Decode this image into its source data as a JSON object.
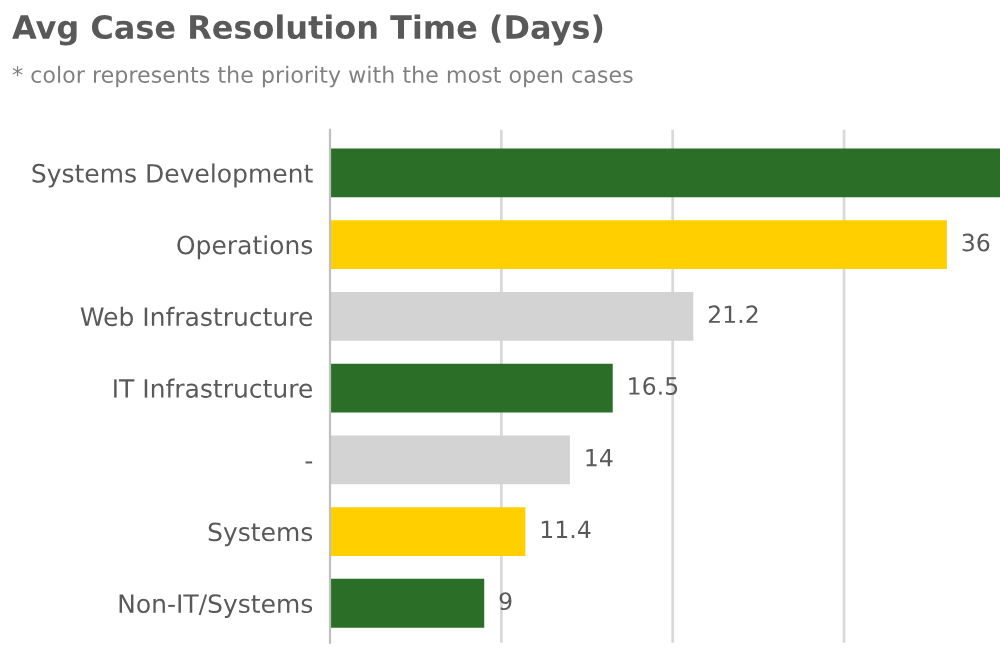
{
  "chart_data": {
    "type": "bar",
    "orientation": "horizontal",
    "title": "Avg Case Resolution Time (Days)",
    "subtitle": "* color represents the priority with the most open cases",
    "categories": [
      "Systems Development",
      "Operations",
      "Web Infrastructure",
      "IT Infrastructure",
      "-",
      "Systems",
      "Non-IT/Systems"
    ],
    "values": [
      39.1,
      36,
      21.2,
      16.5,
      14,
      11.4,
      9
    ],
    "value_labels": [
      null,
      "36",
      "21.2",
      "16.5",
      "14",
      "11.4",
      "9"
    ],
    "colors": [
      "#2a6e28",
      "#ffcf00",
      "#d3d3d3",
      "#2a6e28",
      "#d3d3d3",
      "#ffcf00",
      "#2a6e28"
    ],
    "xlim": [
      0,
      39.1
    ],
    "xticks": [
      {
        "value": 10,
        "label": null
      },
      {
        "value": 20,
        "label": null
      },
      {
        "value": 30,
        "label": null
      }
    ],
    "grid": "x",
    "tick_labels": "y"
  }
}
